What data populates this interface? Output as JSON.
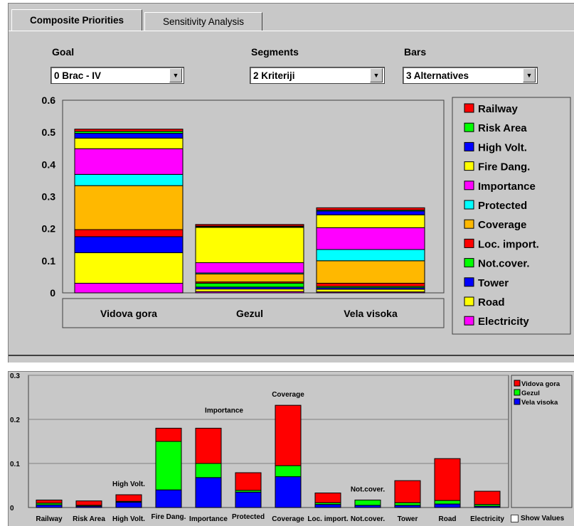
{
  "tabs": [
    {
      "label": "Composite Priorities",
      "active": true
    },
    {
      "label": "Sensitivity Analysis",
      "active": false
    }
  ],
  "selectors": {
    "goal": {
      "label": "Goal",
      "value": "0 Brac - IV"
    },
    "segments": {
      "label": "Segments",
      "value": "2 Kriteriji"
    },
    "bars": {
      "label": "Bars",
      "value": "3 Alternatives"
    }
  },
  "show_values_label": "Show Values",
  "colors": {
    "Railway": "#ff0000",
    "Risk Area": "#00ff00",
    "High Volt.": "#0000ff",
    "Fire Dang.": "#ffff00",
    "Importance": "#ff00ff",
    "Protected": "#00ffff",
    "Coverage": "#ffb800",
    "Loc. import.": "#ff0000",
    "Not.cover.": "#00ff00",
    "Tower": "#0000ff",
    "Road": "#ffff00",
    "Electricity": "#ff00ff"
  },
  "chart_data": [
    {
      "type": "bar",
      "stacked": true,
      "categories": [
        "Vidova gora",
        "Gezul",
        "Vela visoka"
      ],
      "ylim": [
        0,
        0.6
      ],
      "yticks": [
        "0",
        "0.1",
        "0.2",
        "0.3",
        "0.4",
        "0.5",
        "0.6"
      ],
      "legend": [
        "Railway",
        "Risk Area",
        "High Volt.",
        "Fire Dang.",
        "Importance",
        "Protected",
        "Coverage",
        "Loc. import.",
        "Not.cover.",
        "Tower",
        "Road",
        "Electricity"
      ],
      "legend_position": "right",
      "series": [
        {
          "name": "Electricity",
          "values": [
            0.03,
            0.004,
            0.003
          ]
        },
        {
          "name": "Road",
          "values": [
            0.095,
            0.008,
            0.008
          ]
        },
        {
          "name": "Tower",
          "values": [
            0.05,
            0.006,
            0.005
          ]
        },
        {
          "name": "Not.cover.",
          "values": [
            0.0,
            0.012,
            0.004
          ]
        },
        {
          "name": "Loc. import.",
          "values": [
            0.022,
            0.004,
            0.01
          ]
        },
        {
          "name": "Coverage",
          "values": [
            0.137,
            0.025,
            0.07
          ]
        },
        {
          "name": "Protected",
          "values": [
            0.035,
            0.003,
            0.035
          ]
        },
        {
          "name": "Importance",
          "values": [
            0.08,
            0.032,
            0.068
          ]
        },
        {
          "name": "Fire Dang.",
          "values": [
            0.033,
            0.11,
            0.04
          ]
        },
        {
          "name": "High Volt.",
          "values": [
            0.015,
            0.002,
            0.012
          ]
        },
        {
          "name": "Risk Area",
          "values": [
            0.006,
            0.002,
            0.003
          ]
        },
        {
          "name": "Railway",
          "values": [
            0.007,
            0.005,
            0.007
          ]
        }
      ]
    },
    {
      "type": "bar",
      "stacked": true,
      "categories": [
        "Railway",
        "Risk Area",
        "High Volt.",
        "Fire Dang.",
        "Importance",
        "Protected",
        "Coverage",
        "Loc. import.",
        "Not.cover.",
        "Tower",
        "Road",
        "Electricity"
      ],
      "ylim": [
        0,
        0.3
      ],
      "yticks": [
        "0",
        "0.1",
        "0.2",
        "0.3"
      ],
      "legend": [
        "Vidova gora",
        "Gezul",
        "Vela visoka"
      ],
      "legend_position": "right",
      "series": [
        {
          "name": "Vela visoka",
          "values": [
            0.006,
            0.003,
            0.012,
            0.04,
            0.068,
            0.035,
            0.07,
            0.007,
            0.005,
            0.005,
            0.008,
            0.003
          ]
        },
        {
          "name": "Gezul",
          "values": [
            0.004,
            0.002,
            0.002,
            0.11,
            0.032,
            0.004,
            0.025,
            0.004,
            0.012,
            0.006,
            0.008,
            0.004
          ]
        },
        {
          "name": "Vidova gora",
          "values": [
            0.007,
            0.01,
            0.015,
            0.03,
            0.08,
            0.04,
            0.137,
            0.022,
            0.0,
            0.05,
            0.095,
            0.03
          ]
        }
      ],
      "annotations": [
        "Importance",
        "Coverage",
        "High Volt.",
        "Not.cover."
      ]
    }
  ]
}
